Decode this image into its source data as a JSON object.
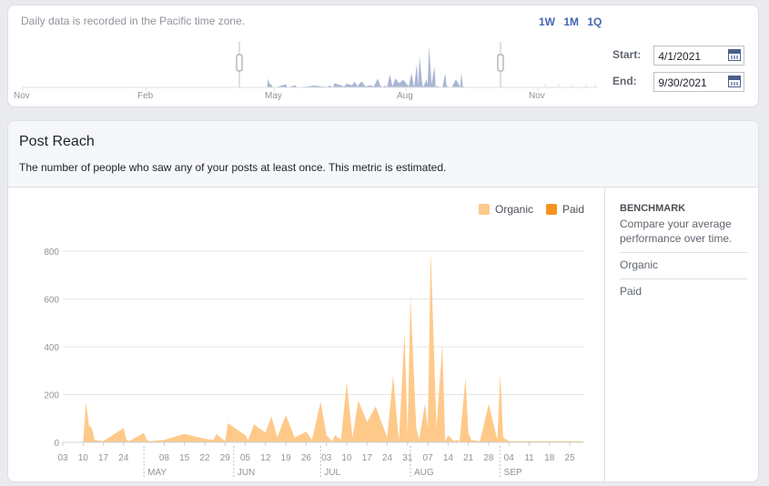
{
  "timeline": {
    "note": "Daily data is recorded in the Pacific time zone.",
    "range_buttons": [
      "1W",
      "1M",
      "1Q"
    ],
    "month_labels": [
      "Nov",
      "Feb",
      "May",
      "Aug",
      "Nov"
    ],
    "start_label": "Start:",
    "start_value": "4/1/2021",
    "end_label": "End:",
    "end_value": "9/30/2021"
  },
  "reach": {
    "title": "Post Reach",
    "subtitle": "The number of people who saw any of your posts at least once. This metric is estimated.",
    "legend": [
      {
        "label": "Organic",
        "color": "#ffc98a"
      },
      {
        "label": "Paid",
        "color": "#f7941d"
      }
    ]
  },
  "benchmark": {
    "title": "BENCHMARK",
    "description": "Compare your average performance over time.",
    "items": [
      "Organic",
      "Paid"
    ]
  },
  "chart_data": {
    "type": "area",
    "x": [
      "Apr 03",
      "Apr 10",
      "Apr 11",
      "Apr 12",
      "Apr 13",
      "Apr 14",
      "Apr 17",
      "Apr 24",
      "Apr 25",
      "Apr 26",
      "May 01",
      "May 02",
      "May 03",
      "May 08",
      "May 15",
      "May 22",
      "May 25",
      "May 26",
      "May 29",
      "May 30",
      "Jun 05",
      "Jun 06",
      "Jun 08",
      "Jun 12",
      "Jun 14",
      "Jun 16",
      "Jun 19",
      "Jun 22",
      "Jun 26",
      "Jun 28",
      "Jul 01",
      "Jul 03",
      "Jul 05",
      "Jul 06",
      "Jul 08",
      "Jul 10",
      "Jul 12",
      "Jul 14",
      "Jul 17",
      "Jul 20",
      "Jul 24",
      "Jul 26",
      "Jul 28",
      "Jul 30",
      "Jul 31",
      "Aug 01",
      "Aug 03",
      "Aug 04",
      "Aug 06",
      "Aug 07",
      "Aug 08",
      "Aug 10",
      "Aug 12",
      "Aug 13",
      "Aug 14",
      "Aug 16",
      "Aug 17",
      "Aug 18",
      "Aug 20",
      "Aug 21",
      "Aug 22",
      "Aug 25",
      "Aug 28",
      "Aug 31",
      "Sep 01",
      "Sep 02",
      "Sep 04",
      "Sep 11",
      "Sep 18",
      "Sep 20",
      "Sep 21",
      "Sep 23",
      "Sep 25",
      "Sep 27",
      "Sep 29",
      "Sep 30"
    ],
    "series": [
      {
        "name": "Organic",
        "values": [
          0,
          0,
          170,
          70,
          60,
          10,
          5,
          60,
          10,
          5,
          40,
          10,
          5,
          10,
          35,
          15,
          10,
          35,
          5,
          80,
          30,
          10,
          75,
          40,
          110,
          20,
          115,
          20,
          45,
          10,
          170,
          30,
          5,
          30,
          10,
          250,
          20,
          175,
          85,
          150,
          20,
          280,
          5,
          460,
          30,
          610,
          60,
          10,
          160,
          60,
          800,
          60,
          410,
          5,
          30,
          5,
          10,
          5,
          270,
          40,
          10,
          5,
          160,
          10,
          290,
          20,
          5,
          5,
          5,
          5,
          5,
          5,
          5,
          5,
          5,
          0
        ]
      },
      {
        "name": "Paid",
        "values": [
          0,
          0,
          0,
          0,
          0,
          0,
          0,
          0,
          0,
          0,
          0,
          0,
          0,
          0,
          0,
          0,
          0,
          0,
          0,
          0,
          0,
          0,
          0,
          0,
          0,
          0,
          0,
          0,
          0,
          0,
          0,
          0,
          0,
          0,
          0,
          0,
          0,
          0,
          0,
          0,
          0,
          0,
          0,
          0,
          0,
          0,
          0,
          0,
          0,
          0,
          0,
          0,
          0,
          0,
          0,
          0,
          0,
          0,
          0,
          0,
          0,
          0,
          0,
          0,
          0,
          0,
          0,
          0,
          0,
          0,
          0,
          0,
          0,
          0,
          0,
          0
        ]
      }
    ],
    "ylim": [
      0,
      800
    ],
    "yticks": [
      0,
      200,
      400,
      600,
      800
    ],
    "xtick_labels": [
      "03",
      "10",
      "17",
      "24",
      "08",
      "15",
      "22",
      "29",
      "05",
      "12",
      "19",
      "26",
      "03",
      "10",
      "17",
      "24",
      "31",
      "07",
      "14",
      "21",
      "28",
      "04",
      "11",
      "18",
      "25"
    ],
    "month_markers": [
      "MAY",
      "JUN",
      "JUL",
      "AUG",
      "SEP"
    ],
    "legend_position": "top-right",
    "grid": true
  }
}
